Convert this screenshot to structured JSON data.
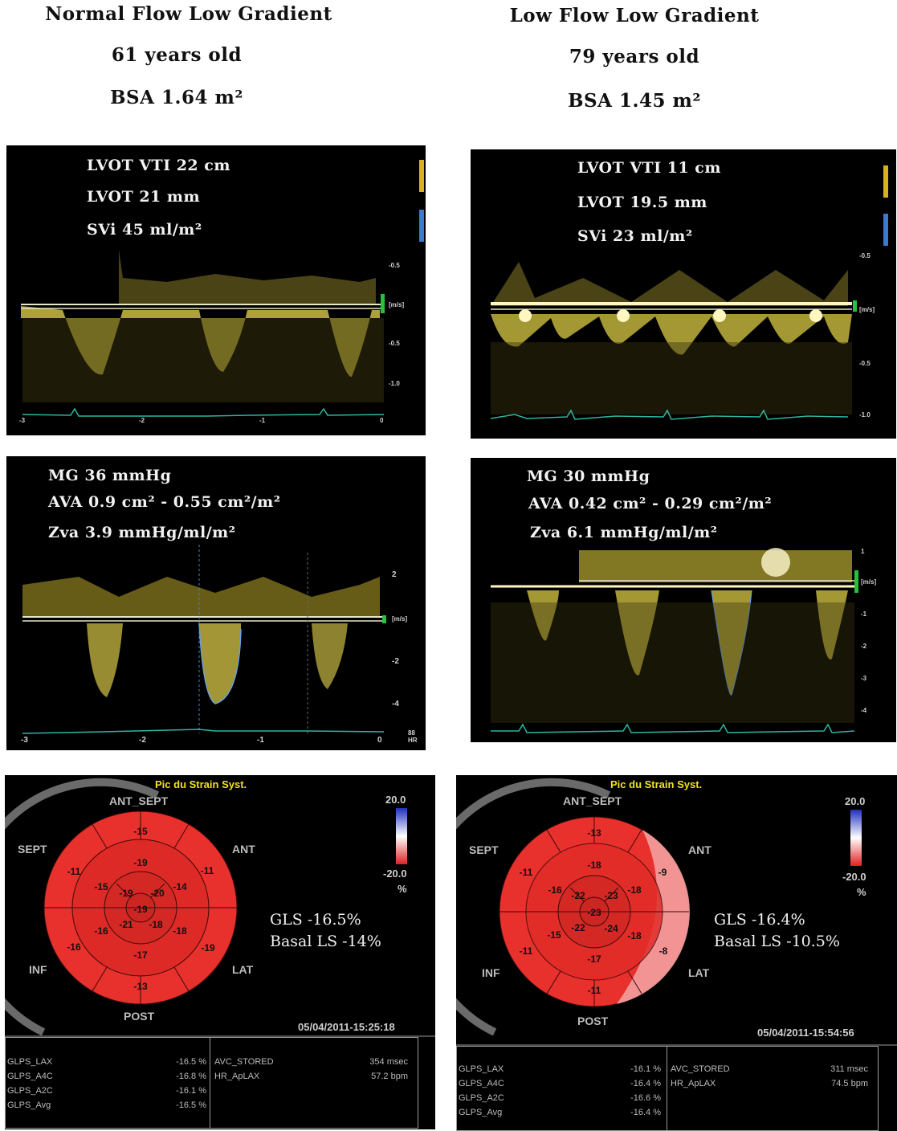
{
  "left": {
    "title": "Normal Flow Low Gradient",
    "age": "61 years old",
    "bsa": "BSA 1.64 m²",
    "lvot_lines": [
      "LVOT VTI 22 cm",
      "LVOT 21 mm",
      "SVi 45 ml/m²"
    ],
    "lvot_ticks": [
      "-0.5",
      "[m/s]",
      "-0.5",
      "-1.0"
    ],
    "lvot_axis": [
      "-3",
      "-2",
      "-1",
      "0"
    ],
    "av_lines": [
      "MG 36 mmHg",
      "AVA 0.9 cm² - 0.55 cm²/m²",
      "Zva 3.9 mmHg/ml/m²"
    ],
    "av_ticks": [
      "2",
      "[m/s]",
      "-2",
      "-4"
    ],
    "av_axis": [
      "-3",
      "-2",
      "-1",
      "0"
    ],
    "av_hr": "88 HR",
    "bullseye": {
      "title": "Pic du Strain Syst.",
      "labels": {
        "ant_sept": "ANT_SEPT",
        "sept": "SEPT",
        "ant": "ANT",
        "inf": "INF",
        "lat": "LAT",
        "post": "POST"
      },
      "scale_max": "20.0",
      "scale_min": "-20.0",
      "scale_unit": "%",
      "outer": [
        "-15",
        "-11",
        "-19",
        "-13",
        "-16",
        "-11"
      ],
      "mid": [
        "-19",
        "-14",
        "-18",
        "-17",
        "-16",
        "-15"
      ],
      "apical": [
        "-20",
        "-18",
        "-21",
        "-19"
      ],
      "apex": "-19"
    },
    "gls": "GLS -16.5%",
    "basal": "Basal LS -14%",
    "timestamp": "05/04/2011-15:25:18",
    "table_left": [
      [
        "GLPS_LAX",
        "-16.5 %"
      ],
      [
        "GLPS_A4C",
        "-16.8 %"
      ],
      [
        "GLPS_A2C",
        "-16.1 %"
      ],
      [
        "GLPS_Avg",
        "-16.5 %"
      ]
    ],
    "table_right": [
      [
        "AVC_STORED",
        "354 msec"
      ],
      [
        "HR_ApLAX",
        "57.2 bpm"
      ]
    ]
  },
  "right": {
    "title": "Low Flow Low Gradient",
    "age": "79 years old",
    "bsa": "BSA 1.45 m²",
    "lvot_lines": [
      "LVOT VTI 11 cm",
      "LVOT 19.5 mm",
      "SVi 23 ml/m²"
    ],
    "lvot_ticks": [
      "-0.5",
      "[m/s]",
      "-0.5",
      "-1.0"
    ],
    "av_lines": [
      "MG 30 mmHg",
      "AVA 0.42 cm² - 0.29 cm²/m²",
      "Zva 6.1 mmHg/ml/m²"
    ],
    "av_ticks": [
      "1",
      "[m/s]",
      "-1",
      "-2",
      "-3",
      "-4"
    ],
    "bullseye": {
      "title": "Pic du Strain Syst.",
      "labels": {
        "ant_sept": "ANT_SEPT",
        "sept": "SEPT",
        "ant": "ANT",
        "inf": "INF",
        "lat": "LAT",
        "post": "POST"
      },
      "scale_max": "20.0",
      "scale_min": "-20.0",
      "scale_unit": "%",
      "outer": [
        "-13",
        "-9",
        "-8",
        "-11",
        "-11",
        "-11"
      ],
      "mid": [
        "-18",
        "-18",
        "-18",
        "-17",
        "-15",
        "-16"
      ],
      "apical": [
        "-23",
        "-24",
        "-22",
        "-22"
      ],
      "apex": "-23"
    },
    "gls": "GLS -16.4%",
    "basal": "Basal LS -10.5%",
    "timestamp": "05/04/2011-15:54:56",
    "table_left": [
      [
        "GLPS_LAX",
        "-16.1 %"
      ],
      [
        "GLPS_A4C",
        "-16.4 %"
      ],
      [
        "GLPS_A2C",
        "-16.6 %"
      ],
      [
        "GLPS_Avg",
        "-16.4 %"
      ]
    ],
    "table_right": [
      [
        "AVC_STORED",
        "311 msec"
      ],
      [
        "HR_ApLAX",
        "74.5 bpm"
      ]
    ]
  },
  "colors": {
    "doppler": "#e8d84a",
    "baseline": "#e6e6c8",
    "ecg": "#2fb5a0",
    "bullseye_red": "#e8302c",
    "bullseye_pale": "#f3a0a0",
    "ring_gray": "#6a6a6a"
  }
}
